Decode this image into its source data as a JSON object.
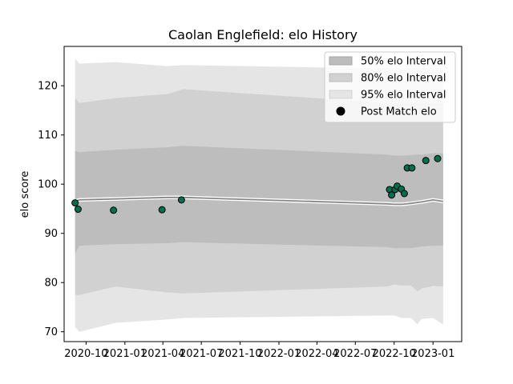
{
  "chart_data": {
    "type": "line",
    "title": "Caolan Englefield: elo History",
    "ylabel": "elo score",
    "xlabel": "",
    "ylim": [
      68,
      128
    ],
    "xlim": [
      "2020-08-10",
      "2023-03-10"
    ],
    "x_ticks": [
      {
        "date": "2020-10-01",
        "label": "2020-10"
      },
      {
        "date": "2021-01-01",
        "label": "2021-01"
      },
      {
        "date": "2021-04-01",
        "label": "2021-04"
      },
      {
        "date": "2021-07-01",
        "label": "2021-07"
      },
      {
        "date": "2021-10-01",
        "label": "2021-10"
      },
      {
        "date": "2022-01-01",
        "label": "2022-01"
      },
      {
        "date": "2022-04-01",
        "label": "2022-04"
      },
      {
        "date": "2022-07-01",
        "label": "2022-07"
      },
      {
        "date": "2022-10-01",
        "label": "2022-10"
      },
      {
        "date": "2023-01-01",
        "label": "2023-01"
      }
    ],
    "y_ticks": [
      70,
      80,
      90,
      100,
      110,
      120
    ],
    "grid": false,
    "legend_position": "top-right",
    "bands": {
      "dates": [
        "2020-09-05",
        "2020-09-15",
        "2020-12-10",
        "2021-04-10",
        "2021-05-20",
        "2022-09-15",
        "2022-10-01",
        "2022-10-20",
        "2022-11-10",
        "2022-11-25",
        "2022-12-05",
        "2023-01-01",
        "2023-01-25"
      ],
      "p95_upper": [
        125.5,
        124.5,
        124.8,
        124.0,
        124.2,
        123.5,
        123.6,
        123.5,
        123.5,
        123.5,
        123.5,
        123.5,
        123.5
      ],
      "p95_lower": [
        71.0,
        70.0,
        71.8,
        72.5,
        72.8,
        73.3,
        73.3,
        72.8,
        72.8,
        71.5,
        72.6,
        72.8,
        71.5
      ],
      "p80_upper": [
        117.5,
        116.5,
        117.5,
        118.3,
        119.3,
        116.5,
        116.5,
        116.5,
        116.5,
        116.5,
        116.5,
        116.5,
        116.5
      ],
      "p80_lower": [
        77.5,
        77.5,
        79.2,
        78.0,
        77.8,
        79.2,
        79.6,
        79.4,
        79.4,
        78.2,
        78.8,
        79.3,
        79.2
      ],
      "p50_upper": [
        106.8,
        106.5,
        107.0,
        107.5,
        107.8,
        106.0,
        105.8,
        105.8,
        105.9,
        106.0,
        106.0,
        106.3,
        106.3
      ],
      "p50_lower": [
        86.0,
        87.5,
        87.8,
        88.0,
        88.2,
        87.2,
        87.0,
        87.0,
        87.0,
        87.2,
        87.3,
        87.5,
        87.5
      ]
    },
    "series": [
      {
        "name": "",
        "type": "line",
        "color": "#888888",
        "dates": [
          "2020-09-05",
          "2020-09-15",
          "2021-04-10",
          "2021-05-20",
          "2022-09-15",
          "2022-10-01",
          "2022-10-20",
          "2022-11-10",
          "2022-12-05",
          "2023-01-01",
          "2023-01-25"
        ],
        "values": [
          96.5,
          96.8,
          97.3,
          97.3,
          96.0,
          95.9,
          95.9,
          96.1,
          96.4,
          96.8,
          96.5
        ]
      },
      {
        "name": "Post Match elo",
        "type": "scatter",
        "color": "#006f4d",
        "dates": [
          "2020-09-05",
          "2020-09-12",
          "2020-12-05",
          "2021-03-30",
          "2021-05-15",
          "2022-09-20",
          "2022-09-25",
          "2022-10-03",
          "2022-10-08",
          "2022-10-18",
          "2022-10-25",
          "2022-11-01",
          "2022-11-12",
          "2022-12-15",
          "2023-01-12"
        ],
        "values": [
          96.2,
          94.9,
          94.7,
          94.8,
          96.8,
          98.9,
          97.8,
          98.9,
          99.6,
          99.0,
          98.1,
          103.3,
          103.3,
          104.8,
          105.2
        ]
      }
    ],
    "legend": [
      {
        "label": "50% elo Interval",
        "swatch": "band50"
      },
      {
        "label": "80% elo Interval",
        "swatch": "band80"
      },
      {
        "label": "95% elo Interval",
        "swatch": "band95"
      },
      {
        "label": "Post Match elo",
        "swatch": "marker"
      }
    ],
    "colors": {
      "band95": "#e5e5e5",
      "band80": "#d1d1d1",
      "band50": "#bdbdbd",
      "mean_line": "#888888",
      "mean_halo": "#ffffff",
      "marker_fill": "#006f4d",
      "marker_edge": "#000000"
    }
  }
}
